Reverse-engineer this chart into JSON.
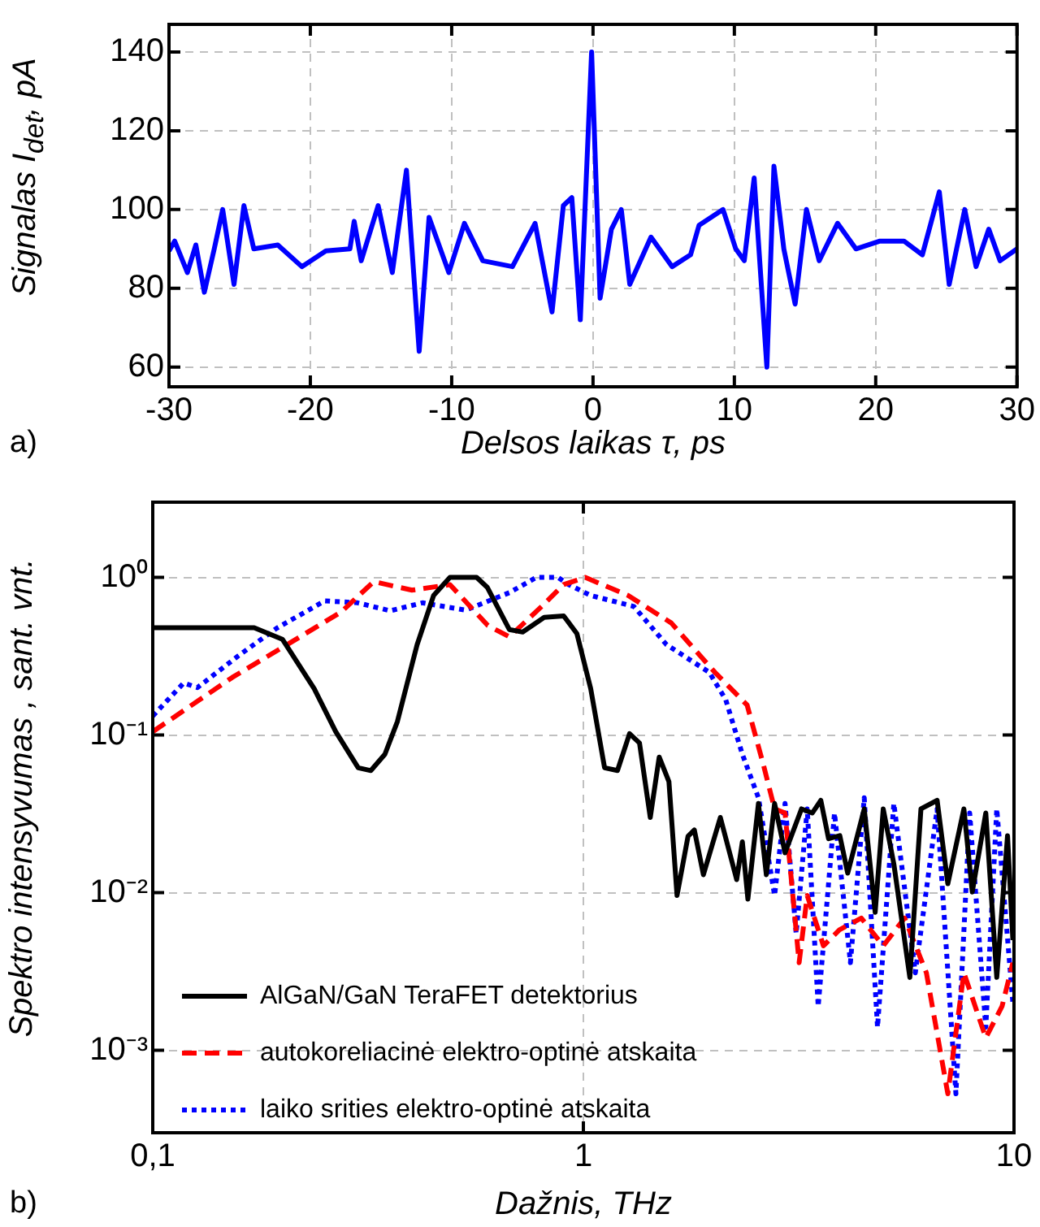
{
  "chart_data": [
    {
      "type": "line",
      "ylabel": "Signalas I$_{det}$, pA",
      "xlabel": "Delsos laikas  τ, ps",
      "annotations": [
        "a)"
      ],
      "xlim": [
        -30,
        30
      ],
      "xticks": [
        -30,
        -20,
        -10,
        0,
        10,
        20,
        30
      ],
      "ylim": [
        55,
        147
      ],
      "yticks": [
        60,
        80,
        100,
        120,
        140
      ],
      "grid": true,
      "series": [
        {
          "color": "#0000ff",
          "x": [
            -30,
            -29.6,
            -28.7,
            -28.1,
            -27.5,
            -26.8,
            -26.2,
            -25.4,
            -24.7,
            -24.0,
            -22.3,
            -20.6,
            -18.9,
            -17.2,
            -16.9,
            -16.4,
            -15.2,
            -14.2,
            -13.2,
            -12.3,
            -11.6,
            -10.2,
            -9.1,
            -7.8,
            -5.7,
            -4.1,
            -2.9,
            -2.1,
            -1.5,
            -0.9,
            -0.1,
            0.5,
            1.3,
            2.0,
            2.6,
            4.1,
            5.6,
            6.9,
            7.5,
            9.2,
            10.1,
            10.7,
            11.4,
            12.3,
            12.8,
            13.5,
            14.3,
            15.1,
            16.0,
            17.3,
            18.6,
            20.3,
            22.0,
            23.3,
            24.5,
            25.2,
            26.3,
            27.1,
            28.0,
            28.8,
            30
          ],
          "values": [
            89.5,
            92,
            84,
            91,
            79,
            90,
            100,
            81,
            101,
            90,
            91,
            85.5,
            89.5,
            90,
            97,
            87,
            101,
            84,
            110,
            64,
            98,
            84,
            96.5,
            87,
            85.5,
            96.5,
            74,
            101,
            103,
            72,
            140,
            77.5,
            95,
            100,
            81,
            93,
            85.5,
            88.5,
            96,
            100,
            90,
            87,
            108,
            60,
            111,
            90,
            76,
            100,
            87,
            96.5,
            90,
            92,
            92,
            88.5,
            104.5,
            81,
            100,
            85.5,
            95,
            87,
            90
          ]
        }
      ]
    },
    {
      "type": "line",
      "ylabel": "Spektro intensyvumas , sant. vnt.",
      "xlabel": "Dažnis, THz",
      "annotations": [
        "b)"
      ],
      "log": "xy",
      "xlim": [
        0.1,
        10
      ],
      "xticks": [
        {
          "value": 0.1,
          "label": "0,1"
        },
        1,
        10
      ],
      "ylim": [
        0.0003,
        3
      ],
      "yticks": [
        {
          "value": 0.001,
          "label": "10⁻³"
        },
        {
          "value": 0.01,
          "label": "10⁻²"
        },
        {
          "value": 0.1,
          "label": "10⁻¹"
        },
        {
          "value": 1,
          "label": "10⁰"
        }
      ],
      "grid": true,
      "legend": "bottom left",
      "series": [
        {
          "name": "AlGaN/GaN TeraFET detektorius",
          "color": "#000000",
          "line_style": "solid",
          "x": [
            0.1,
            0.172,
            0.2,
            0.237,
            0.266,
            0.3,
            0.321,
            0.346,
            0.37,
            0.411,
            0.449,
            0.49,
            0.565,
            0.598,
            0.673,
            0.723,
            0.811,
            0.9,
            0.966,
            1.04,
            1.12,
            1.2,
            1.28,
            1.35,
            1.43,
            1.5,
            1.58,
            1.65,
            1.75,
            1.81,
            1.9,
            2.08,
            2.27,
            2.34,
            2.41,
            2.55,
            2.66,
            2.78,
            2.94,
            3.21,
            3.4,
            3.56,
            3.71,
            3.94,
            4.11,
            4.49,
            4.76,
            4.97,
            5.26,
            5.73,
            6.08,
            6.63,
            7.02,
            7.65,
            8.0,
            8.6,
            9.12,
            9.66,
            9.94
          ],
          "values": [
            0.48,
            0.48,
            0.405,
            0.197,
            0.105,
            0.062,
            0.0595,
            0.0755,
            0.122,
            0.374,
            0.768,
            1.0,
            1.0,
            0.866,
            0.467,
            0.45,
            0.558,
            0.57,
            0.44,
            0.197,
            0.062,
            0.0595,
            0.102,
            0.089,
            0.03,
            0.0725,
            0.0507,
            0.0096,
            0.0228,
            0.025,
            0.013,
            0.03,
            0.0121,
            0.021,
            0.0091,
            0.0368,
            0.013,
            0.0368,
            0.0179,
            0.034,
            0.032,
            0.0385,
            0.022,
            0.023,
            0.0133,
            0.034,
            0.0075,
            0.034,
            0.0152,
            0.0029,
            0.034,
            0.0385,
            0.0114,
            0.034,
            0.0101,
            0.032,
            0.0029,
            0.023,
            0.005
          ]
        },
        {
          "name": "autokoreliacinė elektro-optinė atskaita",
          "color": "#ff0000",
          "line_style": "dashed",
          "x": [
            0.1,
            0.153,
            0.205,
            0.274,
            0.326,
            0.4,
            0.49,
            0.6,
            0.673,
            0.8,
            0.9,
            1.01,
            1.27,
            1.6,
            2.02,
            2.4,
            2.62,
            2.78,
            2.94,
            3.17,
            3.31,
            3.61,
            3.93,
            4.42,
            4.97,
            5.57,
            6.26,
            7.02,
            7.65,
            8.6,
            9.38,
            9.94
          ],
          "values": [
            0.105,
            0.232,
            0.374,
            0.604,
            0.94,
            0.83,
            0.9,
            0.495,
            0.42,
            0.654,
            0.9,
            1.0,
            0.768,
            0.514,
            0.25,
            0.155,
            0.0644,
            0.034,
            0.032,
            0.0036,
            0.0096,
            0.0046,
            0.0058,
            0.0069,
            0.0046,
            0.0069,
            0.0031,
            0.00053,
            0.0031,
            0.0012,
            0.0019,
            0.0036
          ]
        },
        {
          "name": "laiko srities elektro-optinė atskaita",
          "color": "#0000ff",
          "line_style": "dotted",
          "x": [
            0.1,
            0.118,
            0.127,
            0.158,
            0.194,
            0.251,
            0.299,
            0.356,
            0.423,
            0.533,
            0.673,
            0.778,
            0.873,
            0.925,
            1.04,
            1.31,
            1.56,
            1.96,
            2.14,
            2.34,
            2.55,
            2.78,
            2.94,
            3.12,
            3.31,
            3.51,
            3.83,
            4.17,
            4.49,
            4.82,
            5.26,
            5.9,
            6.63,
            7.33,
            7.89,
            8.6,
            9.12,
            9.94
          ],
          "values": [
            0.132,
            0.214,
            0.2,
            0.318,
            0.476,
            0.71,
            0.69,
            0.614,
            0.69,
            0.62,
            0.8,
            1.0,
            1.0,
            0.9,
            0.768,
            0.654,
            0.374,
            0.25,
            0.168,
            0.0755,
            0.04,
            0.0096,
            0.0368,
            0.0055,
            0.034,
            0.0019,
            0.032,
            0.0036,
            0.04,
            0.0014,
            0.0368,
            0.0031,
            0.034,
            0.00053,
            0.032,
            0.0014,
            0.034,
            0.002
          ]
        }
      ]
    }
  ]
}
